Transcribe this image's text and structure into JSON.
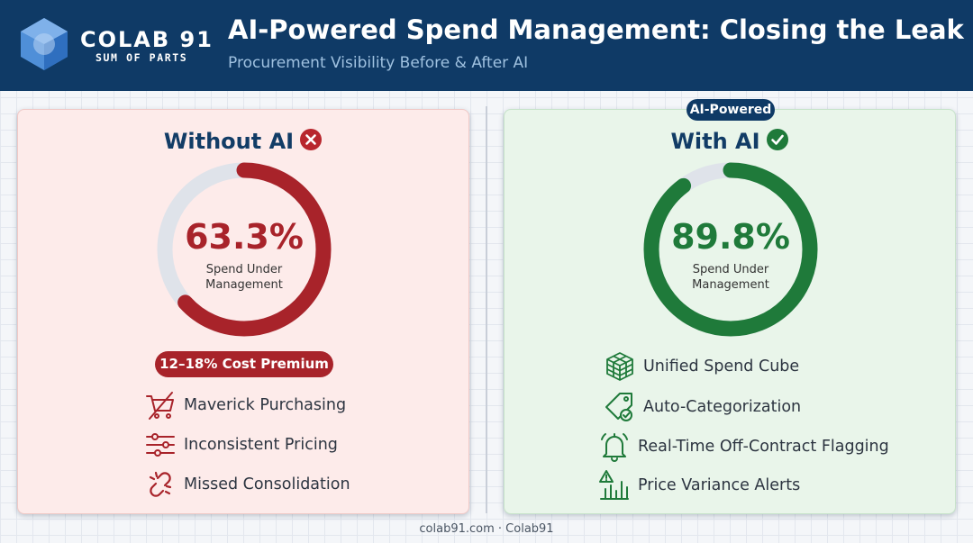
{
  "header": {
    "brand_name": "COLAB 91",
    "brand_tagline": "SUM OF PARTS",
    "title": "AI-Powered Spend Management: Closing the Leak",
    "subtitle": "Procurement Visibility Before & After AI"
  },
  "without_ai": {
    "heading": "Without AI",
    "heading_icon": "x-circle-icon",
    "spend_under_management_pct": 63.3,
    "donut_value": "63.3%",
    "donut_label": "Spend Under Management",
    "cost_premium": "12–18% Cost Premium",
    "color": "#a8232a",
    "items": [
      {
        "label": "Maverick Purchasing",
        "icon": "crossed-cart-icon"
      },
      {
        "label": "Inconsistent Pricing",
        "icon": "sliders-icon"
      },
      {
        "label": "Missed Consolidation",
        "icon": "broken-link-icon"
      }
    ]
  },
  "with_ai": {
    "badge": "AI-Powered",
    "heading": "With AI",
    "heading_icon": "check-circle-icon",
    "spend_under_management_pct": 89.8,
    "donut_value": "89.8%",
    "donut_label": "Spend Under Management",
    "color": "#1f7a3a",
    "items": [
      {
        "label": "Unified Spend Cube",
        "icon": "cube-grid-icon"
      },
      {
        "label": "Auto-Categorization",
        "icon": "tag-check-icon"
      },
      {
        "label": "Real-Time Off-Contract Flagging",
        "icon": "bell-alert-icon"
      },
      {
        "label": "Price Variance Alerts",
        "icon": "warning-chart-icon"
      }
    ]
  },
  "track_color": "#dfe3ea",
  "footer": "colab91.com · Colab91"
}
